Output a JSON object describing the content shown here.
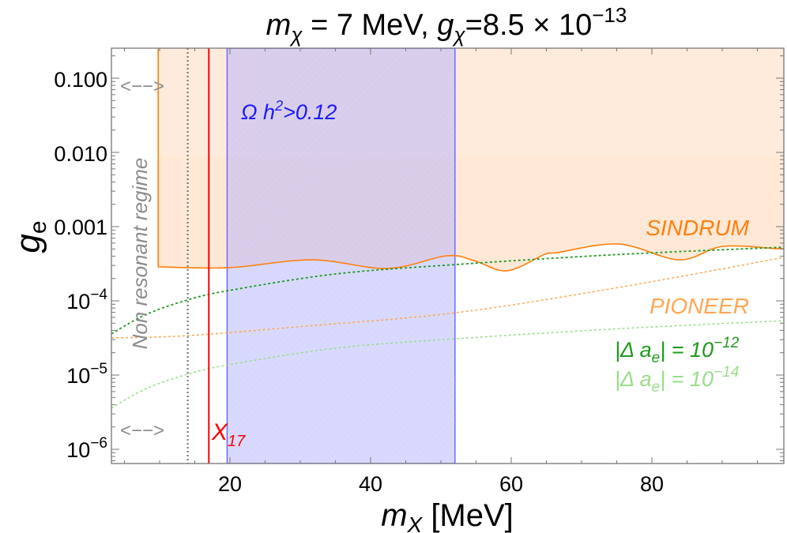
{
  "chart_data": {
    "type": "line",
    "title": "m_χ = 7 MeV, g_χ=8.5 × 10^-13",
    "title_parts": {
      "m_sym": "m",
      "m_sub": "χ",
      "m_text": " = 7 MeV, ",
      "g_sym": "g",
      "g_sub": "χ",
      "g_text": "=8.5 × 10",
      "g_exp": "−13"
    },
    "xlabel": "m_X [MeV]",
    "xlabel_parts": {
      "sym": "m",
      "sub": "X",
      "unit": " [MeV]"
    },
    "ylabel": "g_e",
    "ylabel_parts": {
      "sym": "g",
      "sub": "e"
    },
    "xscale": "linear",
    "yscale": "log",
    "xlim": [
      3.15,
      98.8
    ],
    "ylim": [
      6e-07,
      0.25
    ],
    "x_ticks": [
      20,
      40,
      60,
      80
    ],
    "x_tick_labels": [
      "20",
      "40",
      "60",
      "80"
    ],
    "y_ticks": [
      0.1,
      0.01,
      0.001,
      0.0001,
      1e-05,
      1e-06
    ],
    "y_tick_labels": [
      {
        "base": "0.100",
        "exp": ""
      },
      {
        "base": "0.010",
        "exp": ""
      },
      {
        "base": "0.001",
        "exp": ""
      },
      {
        "base": "10",
        "exp": "−4"
      },
      {
        "base": "10",
        "exp": "−5"
      },
      {
        "base": "10",
        "exp": "−6"
      }
    ],
    "grid": false,
    "regions": [
      {
        "name": "SINDRUM excluded",
        "label": "SINDRUM",
        "color": "#ff7f0e",
        "fill": "#ffe9d6",
        "x_start": 9.8,
        "boundary": [
          [
            9.8,
            0.000287
          ],
          [
            19.9,
            0.00028
          ],
          [
            31.7,
            0.000357
          ],
          [
            42.4,
            0.000273
          ],
          [
            50.8,
            0.000404
          ],
          [
            54.7,
            0.000349
          ],
          [
            59.4,
            0.000254
          ],
          [
            64.8,
            0.000424
          ],
          [
            66.5,
            0.000446
          ],
          [
            75.3,
            0.000583
          ],
          [
            83.9,
            0.000357
          ],
          [
            90.1,
            0.000542
          ],
          [
            98.0,
            0.000504
          ],
          [
            98.8,
            0.000529
          ]
        ]
      },
      {
        "name": "Relic overabundance",
        "label": "Ω h²>0.12",
        "label_parts": {
          "a": "Ω h",
          "sup": "2",
          "b": ">0.12"
        },
        "color": "#1a1aff",
        "fill": "#c8c8ff",
        "x_range": [
          19.6,
          52.0
        ]
      }
    ],
    "series": [
      {
        "name": "|Δ a_e| = 10^-12",
        "label_parts": {
          "a": "|Δ a",
          "sub": "e",
          "b": "| = 10",
          "sup": "−12"
        },
        "style": "dotted",
        "color": "#1f9a1f",
        "points": [
          [
            3.15,
            3.6e-05
          ],
          [
            8,
            6.5e-05
          ],
          [
            14.0,
            0.000103
          ],
          [
            19.9,
            0.000138
          ],
          [
            35,
            0.00023
          ],
          [
            52.0,
            0.000308
          ],
          [
            75,
            0.00042
          ],
          [
            98.8,
            0.000529
          ]
        ]
      },
      {
        "name": "PIONEER",
        "label": "PIONEER",
        "style": "dotted",
        "color": "#ffa652",
        "points": [
          [
            3.15,
            3.17e-05
          ],
          [
            14.0,
            3.4e-05
          ],
          [
            30,
            4.5e-05
          ],
          [
            52.0,
            6.9e-05
          ],
          [
            75,
            0.00015
          ],
          [
            98.8,
            0.000385
          ]
        ]
      },
      {
        "name": "|Δ a_e| = 10^-14",
        "label_parts": {
          "a": "|Δ a",
          "sub": "e",
          "b": "| = 10",
          "sup": "−14"
        },
        "style": "dotted",
        "color": "#99dd8a",
        "points": [
          [
            3.15,
            3.6e-06
          ],
          [
            8,
            6.5e-06
          ],
          [
            14.0,
            1.03e-05
          ],
          [
            19.9,
            1.38e-05
          ],
          [
            35,
            2.3e-05
          ],
          [
            52.0,
            3.08e-05
          ],
          [
            75,
            4.2e-05
          ],
          [
            98.8,
            5.4e-05
          ]
        ]
      }
    ],
    "vertical_lines": [
      {
        "name": "non-resonant boundary",
        "x": 14.0,
        "style": "dotted",
        "color": "#808080"
      },
      {
        "name": "X17",
        "x": 17.0,
        "style": "solid",
        "color": "#ff0000",
        "label_parts": {
          "a": "X",
          "sub": "17"
        }
      }
    ],
    "annotations": [
      {
        "text": "Non resonant regime",
        "rotation": -90,
        "color": "#8c8c8c"
      },
      {
        "text": "<-->",
        "y": 0.08,
        "color": "#8c8c8c"
      },
      {
        "text": "<-->",
        "y": 1.8e-06,
        "color": "#8c8c8c"
      }
    ],
    "arrow_text": "<−−>",
    "nonres_label": "Non resonant regime",
    "sindrum_label": "SINDRUM",
    "pioneer_label": "PIONEER"
  }
}
